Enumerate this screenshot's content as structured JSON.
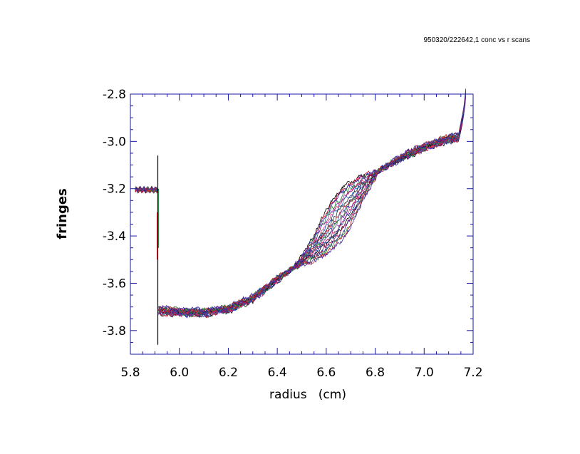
{
  "caption": "950320/222642,1 conc vs r scans",
  "chart_data": {
    "type": "line",
    "title": "",
    "xlabel": "radius   (cm)",
    "ylabel": "fringes",
    "xlim": [
      5.8,
      7.2
    ],
    "ylim": [
      -3.9,
      -2.8
    ],
    "x_ticks": [
      5.8,
      6.0,
      6.2,
      6.4,
      6.6,
      6.8,
      7.0,
      7.2
    ],
    "x_tick_labels": [
      "5.8",
      "6.0",
      "6.2",
      "6.4",
      "6.6",
      "6.8",
      "7.0",
      "7.2"
    ],
    "y_ticks": [
      -3.8,
      -3.6,
      -3.4,
      -3.2,
      -3.0,
      -2.8
    ],
    "y_tick_labels": [
      "-3.8",
      "-3.6",
      "-3.4",
      "-3.2",
      "-3.0",
      "-2.8"
    ],
    "grid": false,
    "series_count": 20,
    "series_colors": [
      "#000000",
      "#c8102e",
      "#2a2ab8",
      "#1f8a3a",
      "#8b2fa0",
      "#e0306a",
      "#1565c0",
      "#333333",
      "#b00020",
      "#3949ab",
      "#2e7d32",
      "#6a1b9a",
      "#d81b60",
      "#0d47a1",
      "#111111",
      "#ad1457",
      "#283593",
      "#388e3c",
      "#c62828",
      "#4527a0"
    ],
    "meniscus_region": {
      "x": [
        5.82,
        5.91
      ],
      "y": -3.205
    },
    "spike": {
      "x": 5.912,
      "y_range": [
        -3.86,
        -3.06
      ]
    },
    "plateau_start": {
      "x": 5.915,
      "y": -3.725
    },
    "boundary_midpoint_range": [
      6.54,
      6.75
    ],
    "base_curve": {
      "x": [
        5.915,
        6.0,
        6.1,
        6.2,
        6.3,
        6.4,
        6.5,
        6.6,
        6.7,
        6.8,
        6.9,
        7.0,
        7.1,
        7.14,
        7.16,
        7.17
      ],
      "y": [
        -3.725,
        -3.735,
        -3.735,
        -3.72,
        -3.675,
        -3.595,
        -3.52,
        -3.41,
        -3.27,
        -3.145,
        -3.085,
        -3.035,
        -3.0,
        -2.995,
        -2.9,
        -2.81
      ]
    }
  }
}
